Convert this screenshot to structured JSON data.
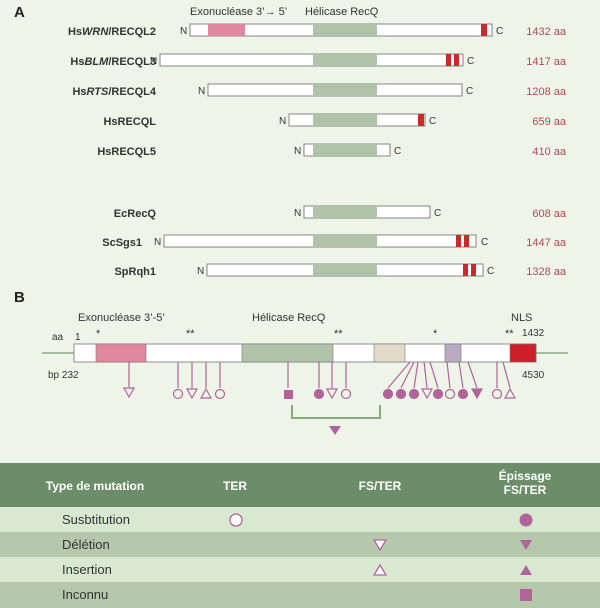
{
  "panel_a": {
    "label": "A",
    "domain_exo": "Exonucléase 3’→ 5’",
    "domain_helicase": "Hélicase RecQ",
    "proteins": [
      {
        "prefix": "Hs",
        "italic": "WRN",
        "suffix": "/RECQL2",
        "length": "1432 aa"
      },
      {
        "prefix": "Hs",
        "italic": "BLM",
        "suffix": "/RECQL3",
        "length": "1417 aa"
      },
      {
        "prefix": "Hs",
        "italic": "RTS",
        "suffix": "/RECQL4",
        "length": "1208 aa"
      },
      {
        "prefix": "HsRECQL",
        "italic": "",
        "suffix": "",
        "length": "659 aa"
      },
      {
        "prefix": "HsRECQL5",
        "italic": "",
        "suffix": "",
        "length": "410 aa"
      },
      {
        "prefix": "EcRecQ",
        "italic": "",
        "suffix": "",
        "length": "608 aa"
      },
      {
        "prefix": "ScSgs1",
        "italic": "",
        "suffix": "",
        "length": "1447 aa"
      },
      {
        "prefix": "SpRqh1",
        "italic": "",
        "suffix": "",
        "length": "1328 aa"
      }
    ],
    "n_label": "N",
    "c_label": "C"
  },
  "panel_b": {
    "label": "B",
    "domain_exo": "Exonucléase 3’-5’",
    "domain_helicase": "Hélicase RecQ",
    "domain_nls": "NLS",
    "aa_label": "aa",
    "aa_start": "1",
    "aa_end": "1432",
    "bp_start": "bp 232",
    "bp_end": "4530",
    "stars_1": "*",
    "stars_2": "**",
    "stars_3": "**",
    "stars_4": "*",
    "stars_5": "**"
  },
  "mutation_table": {
    "headers": [
      "Type de mutation",
      "TER",
      "FS/TER",
      "Épissage\nFS/TER"
    ],
    "rows": [
      {
        "label": "Susbtitution"
      },
      {
        "label": "Délétion"
      },
      {
        "label": "Insertion"
      },
      {
        "label": "Inconnu"
      }
    ]
  },
  "colors": {
    "exo": "#e0899e",
    "helicase": "#b0c2a8",
    "terminal_red": "#cc2a2a",
    "mutation_symbol": "#b0649a",
    "line": "#8aab80",
    "header_bg": "#6b8d67",
    "row_light": "#d9e8d0",
    "row_dark": "#b5c8ac",
    "length_text": "#b04a55"
  }
}
